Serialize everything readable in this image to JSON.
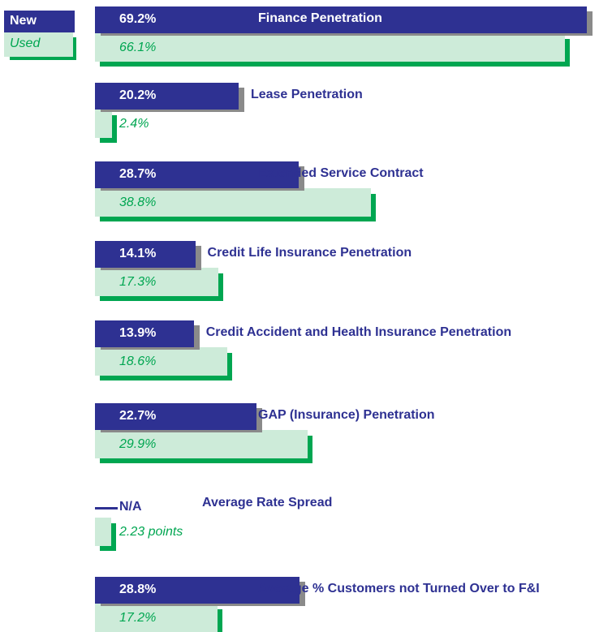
{
  "chart_data": {
    "type": "bar",
    "orientation": "horizontal",
    "categories": [
      "Finance Penetration",
      "Lease Penetration",
      "Extended Service Contract",
      "Credit Life Insurance Penetration",
      "Credit Accident and Health Insurance Penetration",
      "GAP (Insurance) Penetration",
      "Average Rate Spread",
      "Average % Customers not Turned Over to F&I"
    ],
    "series": [
      {
        "name": "New",
        "color": "#2e3192",
        "shadow": "#8a8a8a",
        "values": [
          69.2,
          20.2,
          28.7,
          14.1,
          13.9,
          22.7,
          null,
          28.8
        ],
        "value_labels": [
          "69.2%",
          "20.2%",
          "28.7%",
          "14.1%",
          "13.9%",
          "22.7%",
          "N/A",
          "28.8%"
        ]
      },
      {
        "name": "Used",
        "color": "#cdebd9",
        "shadow": "#00a651",
        "values": [
          66.1,
          2.4,
          38.8,
          17.3,
          18.6,
          29.9,
          2.23,
          17.2
        ],
        "value_labels": [
          "66.1%",
          "2.4%",
          "38.8%",
          "17.3%",
          "18.6%",
          "29.9%",
          "2.23 points",
          "17.2%"
        ]
      }
    ]
  }
}
